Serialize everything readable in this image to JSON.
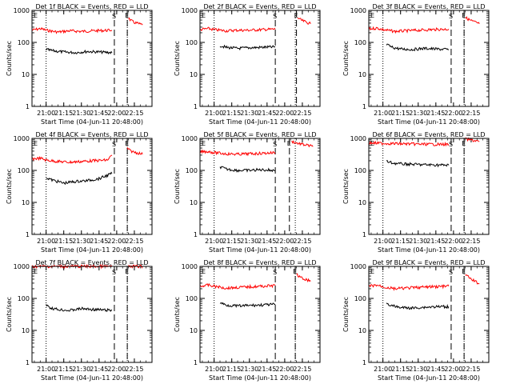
{
  "chart_data": [
    {
      "type": "line",
      "title": "Det 1f BLACK = Events, RED = LLD",
      "ylabel": "Counts/sec",
      "xlabel": "Start Time (04-Jun-11 20:48:00)",
      "yscale": "log",
      "ylim": [
        1,
        1000
      ],
      "x_tick_labels": [
        "21:00",
        "21:15",
        "21:30",
        "21:45",
        "22:00",
        "22:15"
      ],
      "y_tick_labels": [
        "1",
        "10",
        "100",
        "1000"
      ],
      "markers": {
        "E": "20:48",
        "S": "21:58",
        "E2": "22:09"
      },
      "series": [
        {
          "color": "#ff0000",
          "segments": [
            {
              "x": [
                "20:48",
                "20:55",
                "21:00",
                "21:10",
                "21:20",
                "21:30",
                "21:40",
                "21:56"
              ],
              "y": [
                240,
                270,
                240,
                210,
                230,
                220,
                230,
                240
              ]
            },
            {
              "x": [
                "22:10",
                "22:12",
                "22:15",
                "22:19",
                "22:22"
              ],
              "y": [
                580,
                480,
                420,
                380,
                350
              ]
            }
          ]
        },
        {
          "color": "#000000",
          "segments": [
            {
              "x": [
                "21:00",
                "21:05",
                "21:15",
                "21:25",
                "21:35",
                "21:45",
                "21:56"
              ],
              "y": [
                60,
                55,
                50,
                48,
                52,
                50,
                48
              ]
            }
          ]
        }
      ]
    },
    {
      "type": "line",
      "title": "Det 2f BLACK = Events, RED = LLD",
      "ylabel": "Counts/sec",
      "xlabel": "Start Time (04-Jun-11 20:48:00)",
      "yscale": "log",
      "ylim": [
        1,
        1000
      ],
      "x_tick_labels": [
        "21:00",
        "21:15",
        "21:30",
        "21:45",
        "22:00",
        "22:15"
      ],
      "y_tick_labels": [
        "1",
        "10",
        "100",
        "1000"
      ],
      "markers": {
        "E": "20:48",
        "S": "21:52",
        "E2": "22:10"
      },
      "series": [
        {
          "color": "#ff0000",
          "segments": [
            {
              "x": [
                "20:48",
                "20:55",
                "21:00",
                "21:10",
                "21:20",
                "21:30",
                "21:40",
                "21:52"
              ],
              "y": [
                250,
                270,
                250,
                230,
                240,
                240,
                250,
                260
              ]
            },
            {
              "x": [
                "22:11",
                "22:13",
                "22:16",
                "22:19",
                "22:22"
              ],
              "y": [
                600,
                520,
                460,
                420,
                380
              ]
            }
          ]
        },
        {
          "color": "#000000",
          "segments": [
            {
              "x": [
                "21:05",
                "21:10",
                "21:20",
                "21:30",
                "21:40",
                "21:52"
              ],
              "y": [
                80,
                70,
                65,
                68,
                70,
                72
              ]
            }
          ]
        }
      ]
    },
    {
      "type": "line",
      "title": "Det 3f BLACK = Events, RED = LLD",
      "ylabel": "Counts/sec",
      "xlabel": "Start Time (04-Jun-11 20:48:00)",
      "yscale": "log",
      "ylim": [
        1,
        1000
      ],
      "x_tick_labels": [
        "21:00",
        "21:15",
        "21:30",
        "21:45",
        "22:00",
        "22:15"
      ],
      "y_tick_labels": [
        "1",
        "10",
        "100",
        "1000"
      ],
      "markers": {
        "E": "20:48",
        "S": "21:58",
        "E2": "22:09"
      },
      "series": [
        {
          "color": "#ff0000",
          "segments": [
            {
              "x": [
                "20:48",
                "20:55",
                "21:00",
                "21:10",
                "21:20",
                "21:30",
                "21:40",
                "21:56"
              ],
              "y": [
                260,
                280,
                250,
                220,
                230,
                240,
                250,
                260
              ]
            },
            {
              "x": [
                "22:10",
                "22:13",
                "22:16",
                "22:19",
                "22:22"
              ],
              "y": [
                600,
                520,
                460,
                420,
                380
              ]
            }
          ]
        },
        {
          "color": "#000000",
          "segments": [
            {
              "x": [
                "21:03",
                "21:08",
                "21:15",
                "21:25",
                "21:35",
                "21:45",
                "21:56"
              ],
              "y": [
                85,
                70,
                62,
                60,
                65,
                62,
                60
              ]
            }
          ]
        }
      ]
    },
    {
      "type": "line",
      "title": "Det 4f BLACK = Events, RED = LLD",
      "ylabel": "Counts/sec",
      "xlabel": "Start Time (04-Jun-11 20:48:00)",
      "yscale": "log",
      "ylim": [
        1,
        1000
      ],
      "x_tick_labels": [
        "21:00",
        "21:15",
        "21:30",
        "21:45",
        "22:00",
        "22:15"
      ],
      "y_tick_labels": [
        "1",
        "10",
        "100",
        "1000"
      ],
      "markers": {
        "E": "20:48",
        "S": "21:58",
        "E2": "22:09"
      },
      "series": [
        {
          "color": "#ff0000",
          "segments": [
            {
              "x": [
                "20:48",
                "20:55",
                "21:00",
                "21:10",
                "21:20",
                "21:30",
                "21:40",
                "21:52",
                "21:56"
              ],
              "y": [
                230,
                240,
                210,
                190,
                180,
                190,
                200,
                210,
                300
              ]
            },
            {
              "x": [
                "22:09",
                "22:11",
                "22:14",
                "22:18",
                "22:22"
              ],
              "y": [
                500,
                420,
                380,
                350,
                320
              ]
            }
          ]
        },
        {
          "color": "#000000",
          "segments": [
            {
              "x": [
                "21:00",
                "21:05",
                "21:15",
                "21:25",
                "21:35",
                "21:45",
                "21:56"
              ],
              "y": [
                60,
                50,
                40,
                45,
                48,
                55,
                80
              ]
            }
          ]
        }
      ]
    },
    {
      "type": "line",
      "title": "Det 5f BLACK = Events, RED = LLD",
      "ylabel": "Counts/sec",
      "xlabel": "Start Time (04-Jun-11 20:48:00)",
      "yscale": "log",
      "ylim": [
        1,
        1000
      ],
      "x_tick_labels": [
        "21:00",
        "21:15",
        "21:30",
        "21:45",
        "22:00",
        "22:15"
      ],
      "y_tick_labels": [
        "1",
        "10",
        "100",
        "1000"
      ],
      "markers": {
        "E": "20:48",
        "S": "21:52",
        "E2": "22:04"
      },
      "series": [
        {
          "color": "#ff0000",
          "segments": [
            {
              "x": [
                "20:48",
                "20:55",
                "21:00",
                "21:10",
                "21:20",
                "21:30",
                "21:40",
                "21:52"
              ],
              "y": [
                380,
                390,
                360,
                330,
                320,
                330,
                340,
                360
              ]
            },
            {
              "x": [
                "22:06",
                "22:10",
                "22:15",
                "22:20",
                "22:24"
              ],
              "y": [
                800,
                720,
                650,
                600,
                550
              ]
            }
          ]
        },
        {
          "color": "#000000",
          "segments": [
            {
              "x": [
                "21:05",
                "21:10",
                "21:20",
                "21:30",
                "21:40",
                "21:52"
              ],
              "y": [
                130,
                110,
                100,
                100,
                105,
                100
              ]
            }
          ]
        }
      ]
    },
    {
      "type": "line",
      "title": "Det 6f BLACK = Events, RED = LLD",
      "ylabel": "Counts/sec",
      "xlabel": "Start Time (04-Jun-11 20:48:00)",
      "yscale": "log",
      "ylim": [
        1,
        1000
      ],
      "x_tick_labels": [
        "21:00",
        "21:15",
        "21:30",
        "21:45",
        "22:00",
        "22:15"
      ],
      "y_tick_labels": [
        "1",
        "10",
        "100",
        "1000"
      ],
      "markers": {
        "E": "20:48",
        "S": "21:58",
        "E2": "22:09"
      },
      "series": [
        {
          "color": "#ff0000",
          "segments": [
            {
              "x": [
                "20:48",
                "21:00",
                "21:15",
                "21:30",
                "21:45",
                "21:56"
              ],
              "y": [
                720,
                700,
                680,
                660,
                650,
                650
              ]
            },
            {
              "x": [
                "22:10",
                "22:14",
                "22:18",
                "22:22"
              ],
              "y": [
                950,
                900,
                850,
                800
              ]
            }
          ]
        },
        {
          "color": "#000000",
          "segments": [
            {
              "x": [
                "21:03",
                "21:08",
                "21:15",
                "21:25",
                "21:35",
                "21:45",
                "21:56"
              ],
              "y": [
                190,
                170,
                160,
                155,
                150,
                148,
                145
              ]
            }
          ]
        }
      ]
    },
    {
      "type": "line",
      "title": "Det 7f BLACK = Events, RED = LLD",
      "ylabel": "Counts/sec",
      "xlabel": "Start Time (04-Jun-11 20:48:00)",
      "yscale": "log",
      "ylim": [
        1,
        1000
      ],
      "x_tick_labels": [
        "21:00",
        "21:15",
        "21:30",
        "21:45",
        "22:00",
        "22:15"
      ],
      "y_tick_labels": [
        "1",
        "10",
        "100",
        "1000"
      ],
      "markers": {
        "E": "20:48",
        "S": "21:58",
        "E2": "22:09"
      },
      "series": [
        {
          "color": "#ff0000",
          "segments": [
            {
              "x": [
                "20:48",
                "21:00",
                "21:15",
                "21:30",
                "21:45",
                "21:56"
              ],
              "y": [
                1000,
                1000,
                1000,
                1000,
                1000,
                1000
              ]
            },
            {
              "x": [
                "22:10",
                "22:14",
                "22:18",
                "22:22"
              ],
              "y": [
                1000,
                1000,
                1000,
                1000
              ]
            }
          ]
        },
        {
          "color": "#000000",
          "segments": [
            {
              "x": [
                "21:00",
                "21:04",
                "21:10",
                "21:20",
                "21:30",
                "21:40",
                "21:56"
              ],
              "y": [
                65,
                50,
                45,
                42,
                48,
                45,
                42
              ]
            }
          ]
        }
      ]
    },
    {
      "type": "line",
      "title": "Det 8f BLACK = Events, RED = LLD",
      "ylabel": "Counts/sec",
      "xlabel": "Start Time (04-Jun-11 20:48:00)",
      "yscale": "log",
      "ylim": [
        1,
        1000
      ],
      "x_tick_labels": [
        "21:00",
        "21:15",
        "21:30",
        "21:45",
        "22:00",
        "22:15"
      ],
      "y_tick_labels": [
        "1",
        "10",
        "100",
        "1000"
      ],
      "markers": {
        "E": "20:48",
        "S": "21:52",
        "E2": "22:09"
      },
      "series": [
        {
          "color": "#ff0000",
          "segments": [
            {
              "x": [
                "20:48",
                "20:55",
                "21:00",
                "21:10",
                "21:20",
                "21:30",
                "21:40",
                "21:52"
              ],
              "y": [
                240,
                260,
                240,
                210,
                220,
                230,
                240,
                250
              ]
            },
            {
              "x": [
                "22:10",
                "22:12",
                "22:15",
                "22:19",
                "22:22"
              ],
              "y": [
                600,
                480,
                420,
                380,
                340
              ]
            }
          ]
        },
        {
          "color": "#000000",
          "segments": [
            {
              "x": [
                "21:05",
                "21:10",
                "21:20",
                "21:30",
                "21:40",
                "21:52"
              ],
              "y": [
                75,
                62,
                58,
                60,
                62,
                65
              ]
            }
          ]
        }
      ]
    },
    {
      "type": "line",
      "title": "Det 9f BLACK = Events, RED = LLD",
      "ylabel": "Counts/sec",
      "xlabel": "Start Time (04-Jun-11 20:48:00)",
      "yscale": "log",
      "ylim": [
        1,
        1000
      ],
      "x_tick_labels": [
        "21:00",
        "21:15",
        "21:30",
        "21:45",
        "22:00",
        "22:15"
      ],
      "y_tick_labels": [
        "1",
        "10",
        "100",
        "1000"
      ],
      "markers": {
        "E": "20:48",
        "S": "21:58",
        "E2": "22:09"
      },
      "series": [
        {
          "color": "#ff0000",
          "segments": [
            {
              "x": [
                "20:48",
                "20:55",
                "21:00",
                "21:10",
                "21:20",
                "21:30",
                "21:40",
                "21:56"
              ],
              "y": [
                240,
                260,
                230,
                200,
                210,
                220,
                230,
                240
              ]
            },
            {
              "x": [
                "22:10",
                "22:12",
                "22:15",
                "22:19",
                "22:22"
              ],
              "y": [
                600,
                480,
                400,
                330,
                290
              ]
            }
          ]
        },
        {
          "color": "#000000",
          "segments": [
            {
              "x": [
                "21:03",
                "21:08",
                "21:15",
                "21:25",
                "21:35",
                "21:45",
                "21:56"
              ],
              "y": [
                70,
                58,
                52,
                50,
                53,
                55,
                55
              ]
            }
          ]
        }
      ]
    }
  ]
}
